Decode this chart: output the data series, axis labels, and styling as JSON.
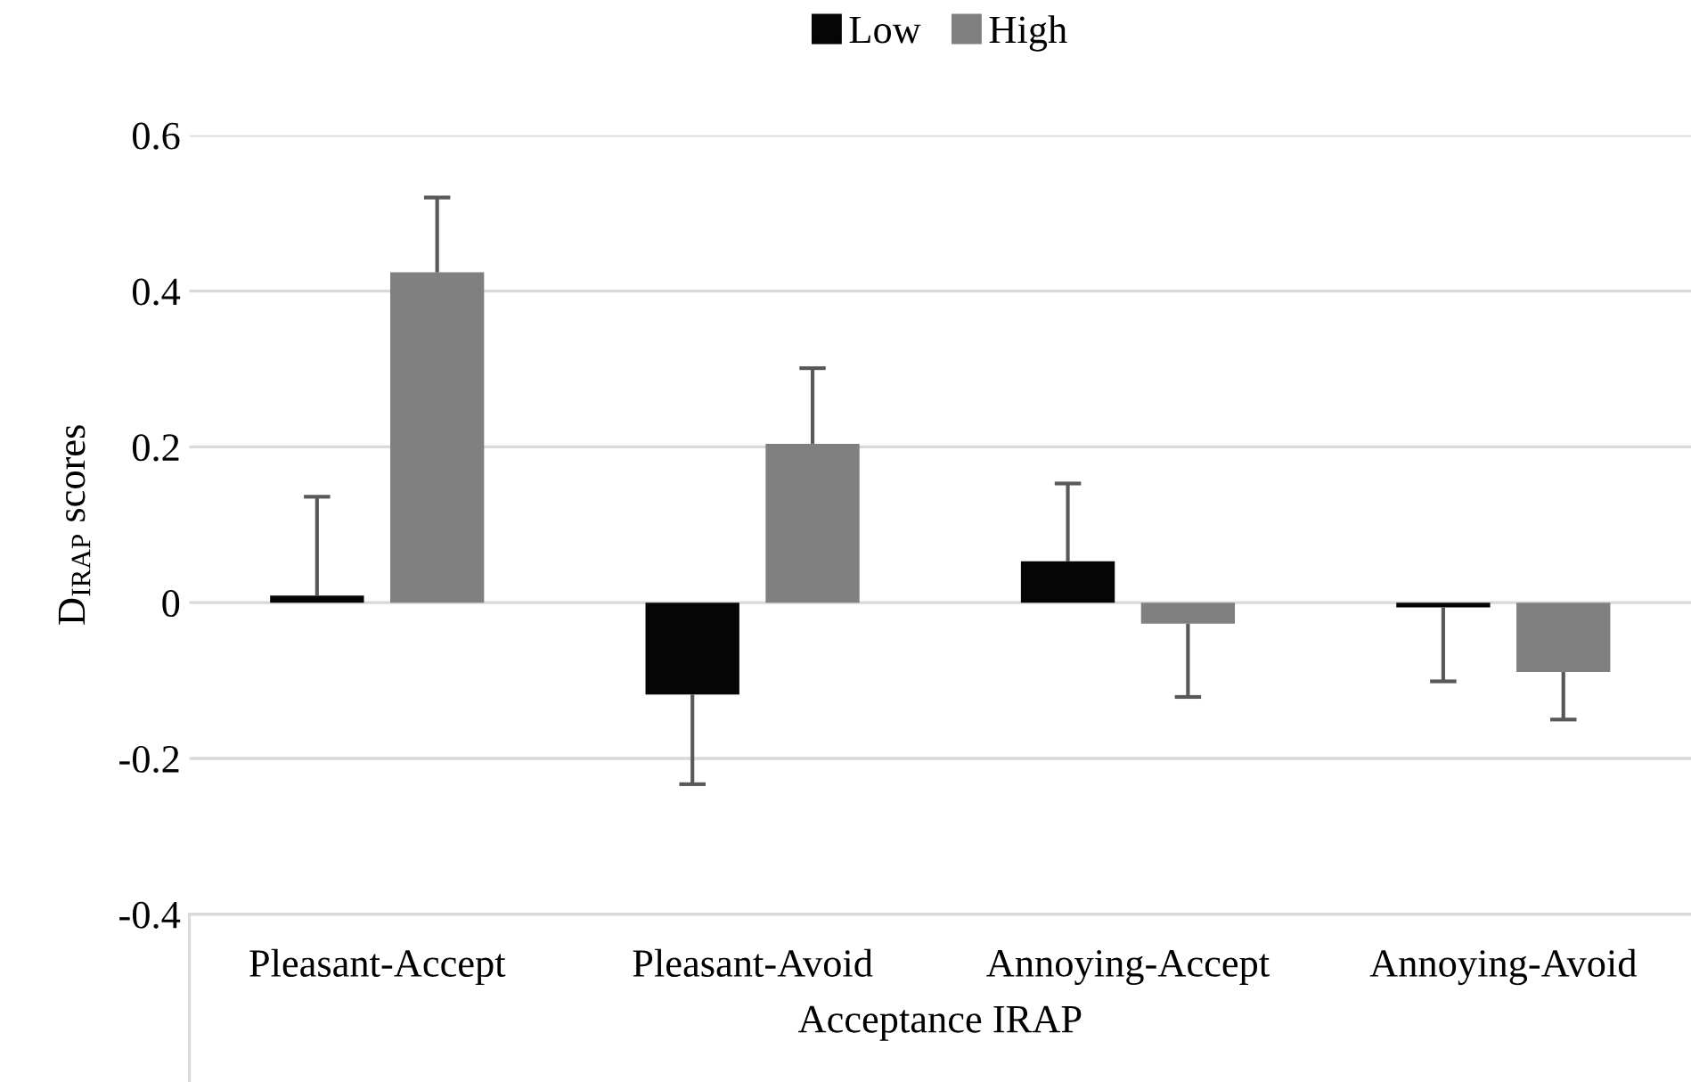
{
  "chart_data": {
    "type": "bar",
    "xlabel": "Acceptance IRAP",
    "ylabel": "D$_{IRAP}$ scores",
    "categories": [
      "Pleasant-Accept",
      "Pleasant-Avoid",
      "Annoying-Accept",
      "Annoying-Avoid"
    ],
    "series": [
      {
        "name": "Low",
        "color": "#050505",
        "values": [
          0.009,
          -0.118,
          0.053,
          -0.006
        ],
        "errors": [
          [
            0.009,
            0.136
          ],
          [
            -0.233,
            -0.118
          ],
          [
            0.053,
            0.153
          ],
          [
            -0.101,
            -0.006
          ]
        ]
      },
      {
        "name": "High",
        "color": "#808080",
        "values": [
          0.424,
          0.204,
          -0.027,
          -0.089
        ],
        "errors": [
          [
            0.424,
            0.52
          ],
          [
            0.204,
            0.301
          ],
          [
            -0.121,
            -0.027
          ],
          [
            -0.15,
            -0.089
          ]
        ]
      }
    ],
    "ylim": [
      -0.4,
      0.6
    ],
    "yticks": [
      {
        "value": -0.4,
        "label": "-0.4"
      },
      {
        "value": -0.2,
        "label": "-0.2"
      },
      0,
      0.2,
      0.4,
      0.6
    ],
    "grid": "y",
    "legend": "top"
  }
}
